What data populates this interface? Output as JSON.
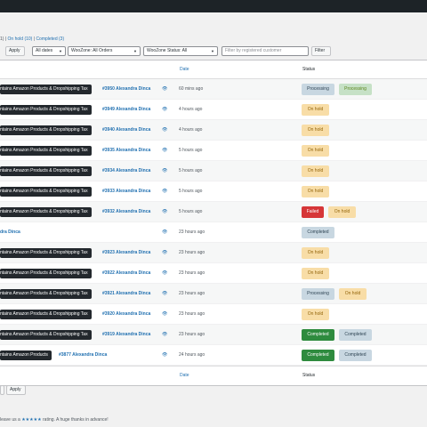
{
  "status_links": {
    "prefix": "1)",
    "sep1": "|",
    "on_hold": "On hold (10)",
    "sep2": "|",
    "completed": "Completed (3)"
  },
  "filters": {
    "apply_label": "Apply",
    "dates_label": "All dates",
    "woozone_orders_label": "WooZone: All Orders",
    "woozone_status_label": "WooZone Status: All",
    "customer_placeholder": "Filter by registered customer",
    "filter_label": "Filter"
  },
  "columns": {
    "date": "Date",
    "status": "Status"
  },
  "rows": [
    {
      "tax": "ntains Amazon Products & Dropshipping Tax",
      "order": "#3950 Alexandra Dinca",
      "date": "60 mins ago",
      "badges": [
        {
          "label": "Processing",
          "style": "b-processing-grey"
        },
        {
          "label": "Processing",
          "style": "b-processing"
        }
      ]
    },
    {
      "tax": "ntains Amazon Products & Dropshipping Tax",
      "order": "#3949 Alexandra Dinca",
      "date": "4 hours ago",
      "badges": [
        {
          "label": "On hold",
          "style": "b-onhold"
        }
      ]
    },
    {
      "tax": "ntains Amazon Products & Dropshipping Tax",
      "order": "#3940 Alexandra Dinca",
      "date": "4 hours ago",
      "badges": [
        {
          "label": "On hold",
          "style": "b-onhold"
        }
      ]
    },
    {
      "tax": "ntains Amazon Products & Dropshipping Tax",
      "order": "#3935 Alexandra Dinca",
      "date": "5 hours ago",
      "badges": [
        {
          "label": "On hold",
          "style": "b-onhold"
        }
      ]
    },
    {
      "tax": "ntains Amazon Products & Dropshipping Tax",
      "order": "#3934 Alexandra Dinca",
      "date": "5 hours ago",
      "badges": [
        {
          "label": "On hold",
          "style": "b-onhold"
        }
      ]
    },
    {
      "tax": "ntains Amazon Products & Dropshipping Tax",
      "order": "#3933 Alexandra Dinca",
      "date": "5 hours ago",
      "badges": [
        {
          "label": "On hold",
          "style": "b-onhold"
        }
      ]
    },
    {
      "tax": "ntains Amazon Products & Dropshipping Tax",
      "order": "#3932 Alexandra Dinca",
      "date": "5 hours ago",
      "badges": [
        {
          "label": "Failed",
          "style": "b-failed"
        },
        {
          "label": "On hold",
          "style": "b-onhold"
        }
      ]
    },
    {
      "tax": "",
      "order": "dra Dinca",
      "date": "23 hours ago",
      "badges": [
        {
          "label": "Completed",
          "style": "b-completed"
        }
      ]
    },
    {
      "tax": "ntains Amazon Products & Dropshipping Tax",
      "order": "#3923 Alexandra Dinca",
      "date": "23 hours ago",
      "badges": [
        {
          "label": "On hold",
          "style": "b-onhold"
        }
      ]
    },
    {
      "tax": "ntains Amazon Products & Dropshipping Tax",
      "order": "#3922 Alexandra Dinca",
      "date": "23 hours ago",
      "badges": [
        {
          "label": "On hold",
          "style": "b-onhold"
        }
      ]
    },
    {
      "tax": "ntains Amazon Products & Dropshipping Tax",
      "order": "#3921 Alexandra Dinca",
      "date": "23 hours ago",
      "badges": [
        {
          "label": "Processing",
          "style": "b-processing-grey"
        },
        {
          "label": "On hold",
          "style": "b-onhold"
        }
      ]
    },
    {
      "tax": "ntains Amazon Products & Dropshipping Tax",
      "order": "#3920 Alexandra Dinca",
      "date": "23 hours ago",
      "badges": [
        {
          "label": "On hold",
          "style": "b-onhold"
        }
      ]
    },
    {
      "tax": "ntains Amazon Products & Dropshipping Tax",
      "order": "#3919 Alexandra Dinca",
      "date": "23 hours ago",
      "badges": [
        {
          "label": "Completed",
          "style": "b-completed-green"
        },
        {
          "label": "Completed",
          "style": "b-completed"
        }
      ]
    },
    {
      "tax": "ntains Amazon Products",
      "order": "#3877 Alexandra Dinca",
      "date": "24 hours ago",
      "badges": [
        {
          "label": "Completed",
          "style": "b-completed-green"
        },
        {
          "label": "Completed",
          "style": "b-completed"
        }
      ]
    }
  ],
  "bottom": {
    "apply_label": "Apply"
  },
  "footer": {
    "pre": "leave us a",
    "stars": "★★★★★",
    "post": "rating. A huge thanks in advance!"
  },
  "colors": {
    "admin_bar": "#1d2327",
    "link": "#2271b1",
    "tax_badge": "#23282d",
    "on_hold": "#f8dda7",
    "failed": "#d63638",
    "completed_green": "#2e8b3e"
  }
}
